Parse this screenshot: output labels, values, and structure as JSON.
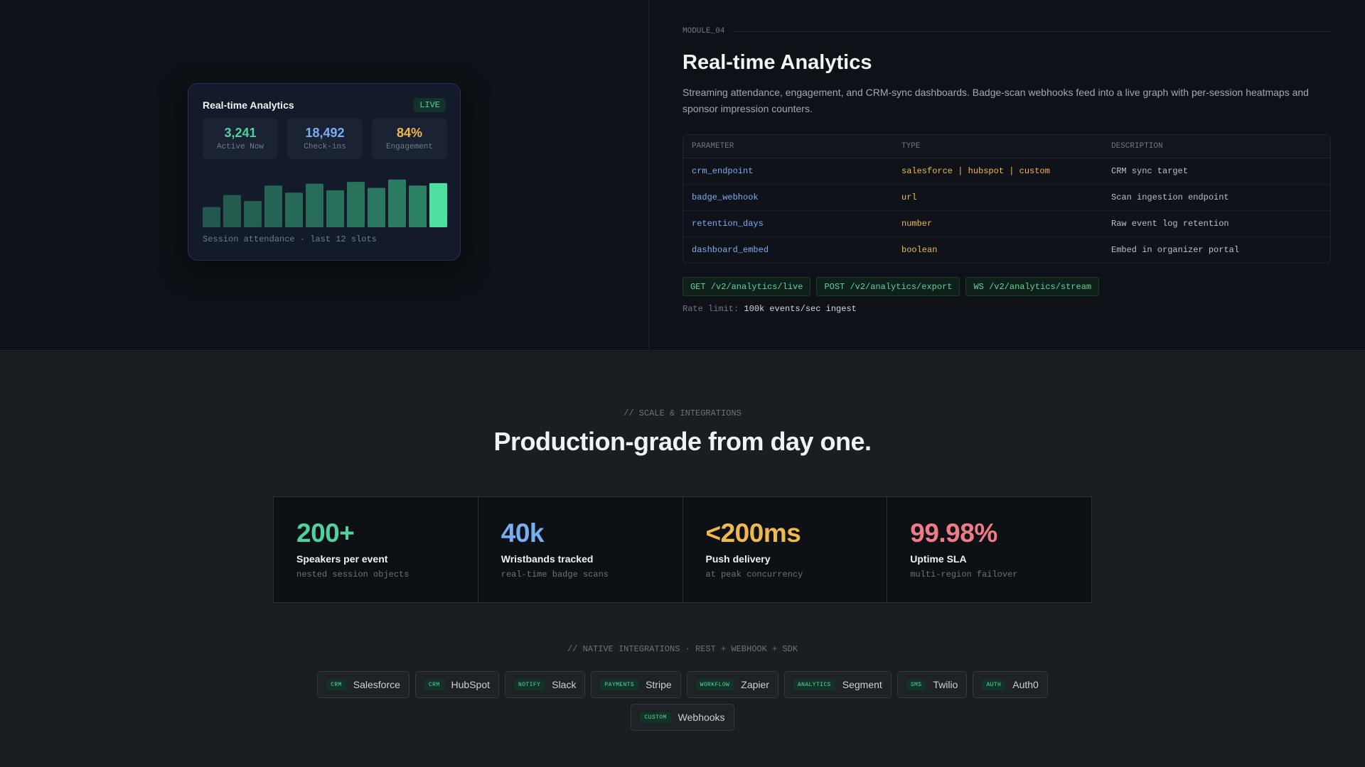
{
  "analytics_card": {
    "title": "Real-time Analytics",
    "badge": "LIVE",
    "metrics": [
      {
        "value": "3,241",
        "label": "Active Now",
        "color": "#4fd1a0"
      },
      {
        "value": "18,492",
        "label": "Check-ins",
        "color": "#79aef2"
      },
      {
        "value": "84%",
        "label": "Engagement",
        "color": "#f0b94c"
      }
    ],
    "chart_data": {
      "type": "bar",
      "values": [
        34,
        54,
        44,
        70,
        58,
        73,
        62,
        76,
        66,
        80,
        70,
        74
      ],
      "ylim": [
        0,
        100
      ]
    },
    "caption": "Session attendance · last 12 slots"
  },
  "module": {
    "tag": "MODULE_04",
    "title": "Real-time Analytics",
    "description": "Streaming attendance, engagement, and CRM-sync dashboards. Badge-scan webhooks feed into a live graph with per-session heatmaps and sponsor impression counters.",
    "table": {
      "headers": [
        "PARAMETER",
        "TYPE",
        "DESCRIPTION"
      ],
      "rows": [
        [
          "crm_endpoint",
          "salesforce | hubspot | custom",
          "CRM sync target"
        ],
        [
          "badge_webhook",
          "url",
          "Scan ingestion endpoint"
        ],
        [
          "retention_days",
          "number",
          "Raw event log retention"
        ],
        [
          "dashboard_embed",
          "boolean",
          "Embed in organizer portal"
        ]
      ]
    },
    "endpoints": [
      "GET /v2/analytics/live",
      "POST /v2/analytics/export",
      "WS /v2/analytics/stream"
    ],
    "rate_limit_label": "Rate limit:",
    "rate_limit_value": "100k events/sec ingest"
  },
  "scale": {
    "eyebrow": "// SCALE & INTEGRATIONS",
    "headline": "Production-grade from day one.",
    "stats": [
      {
        "value": "200+",
        "name": "Speakers per event",
        "sub": "nested session objects",
        "color": "#4fd1a0"
      },
      {
        "value": "40k",
        "name": "Wristbands tracked",
        "sub": "real-time badge scans",
        "color": "#79aef2"
      },
      {
        "value": "<200ms",
        "name": "Push delivery",
        "sub": "at peak concurrency",
        "color": "#f0b94c"
      },
      {
        "value": "99.98%",
        "name": "Uptime SLA",
        "sub": "multi-region failover",
        "color": "#f27a86"
      }
    ],
    "integrations_eyebrow": "// NATIVE INTEGRATIONS · REST + WEBHOOK + SDK",
    "integrations": [
      {
        "category": "CRM",
        "name": "Salesforce"
      },
      {
        "category": "CRM",
        "name": "HubSpot"
      },
      {
        "category": "NOTIFY",
        "name": "Slack"
      },
      {
        "category": "PAYMENTS",
        "name": "Stripe"
      },
      {
        "category": "WORKFLOW",
        "name": "Zapier"
      },
      {
        "category": "ANALYTICS",
        "name": "Segment"
      },
      {
        "category": "SMS",
        "name": "Twilio"
      },
      {
        "category": "AUTH",
        "name": "Auth0"
      },
      {
        "category": "CUSTOM",
        "name": "Webhooks"
      }
    ]
  }
}
